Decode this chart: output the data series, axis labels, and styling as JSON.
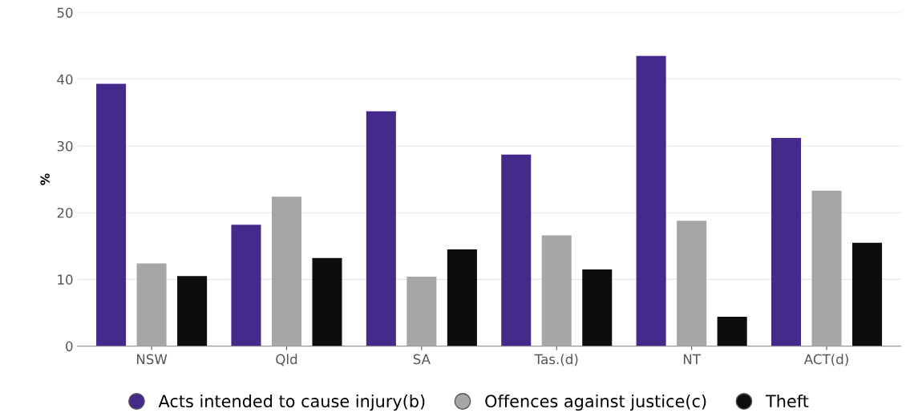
{
  "chart_data": {
    "type": "bar",
    "ylabel": "%",
    "categories": [
      "NSW",
      "Qld",
      "SA",
      "Tas.(d)",
      "NT",
      "ACT(d)"
    ],
    "series": [
      {
        "name": "Acts intended to cause injury(b)",
        "color": "#452a8c",
        "values": [
          39.3,
          18.2,
          35.2,
          28.7,
          43.5,
          31.2
        ]
      },
      {
        "name": "Offences against justice(c)",
        "color": "#a6a6a6",
        "values": [
          12.4,
          22.4,
          10.4,
          16.6,
          18.8,
          23.3
        ]
      },
      {
        "name": "Theft",
        "color": "#0d0d0d",
        "values": [
          10.5,
          13.2,
          14.5,
          11.5,
          4.4,
          15.5
        ]
      }
    ],
    "ylim": [
      0,
      50
    ],
    "yticks": [
      0,
      10,
      20,
      30,
      40,
      50
    ],
    "grid": "y",
    "legend": "bottom"
  }
}
